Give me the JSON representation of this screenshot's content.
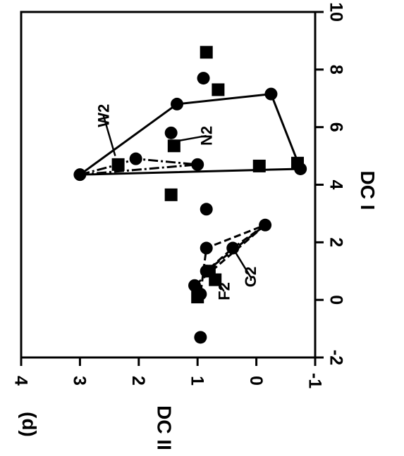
{
  "chart_data": {
    "type": "scatter",
    "panel_label": "(d)",
    "xlabel": "DC I",
    "ylabel": "DC II",
    "xlim": [
      -2,
      10
    ],
    "ylim": [
      -1,
      4
    ],
    "x_ticks": [
      "-2",
      "0",
      "2",
      "4",
      "6",
      "8",
      "10"
    ],
    "y_ticks": [
      "-1",
      "0",
      "1",
      "2",
      "3",
      "4"
    ],
    "grid": false,
    "series": [
      {
        "marker": "circle",
        "points": [
          {
            "x": 7.7,
            "y": 0.9
          },
          {
            "x": 6.8,
            "y": 1.35
          },
          {
            "x": 7.15,
            "y": -0.25
          },
          {
            "x": 5.8,
            "y": 1.45
          },
          {
            "x": 4.9,
            "y": 2.05
          },
          {
            "x": 4.7,
            "y": 1.0
          },
          {
            "x": 4.35,
            "y": 3.0
          },
          {
            "x": 4.55,
            "y": -0.75
          },
          {
            "x": 3.15,
            "y": 0.85
          },
          {
            "x": 2.6,
            "y": -0.15
          },
          {
            "x": 1.8,
            "y": 0.4
          },
          {
            "x": 1.8,
            "y": 0.85
          },
          {
            "x": 1.0,
            "y": 0.85
          },
          {
            "x": 0.5,
            "y": 1.05
          },
          {
            "x": 0.2,
            "y": 0.95
          },
          {
            "x": -1.3,
            "y": 0.95
          }
        ]
      },
      {
        "marker": "square",
        "points": [
          {
            "x": 8.6,
            "y": 0.85
          },
          {
            "x": 7.3,
            "y": 0.65
          },
          {
            "x": 5.35,
            "y": 1.4
          },
          {
            "x": 4.7,
            "y": 2.35
          },
          {
            "x": 4.65,
            "y": -0.05
          },
          {
            "x": 4.75,
            "y": -0.7
          },
          {
            "x": 3.65,
            "y": 1.45
          },
          {
            "x": 1.0,
            "y": 0.8
          },
          {
            "x": 0.7,
            "y": 0.7
          },
          {
            "x": 0.1,
            "y": 1.0
          }
        ]
      }
    ],
    "outlines": [
      [
        [
          4.35,
          3.0
        ],
        [
          6.8,
          1.35
        ],
        [
          7.15,
          -0.25
        ],
        [
          4.55,
          -0.75
        ],
        [
          4.35,
          3.0
        ]
      ],
      [
        [
          4.35,
          3.0
        ],
        [
          4.7,
          2.35
        ],
        [
          4.9,
          2.05
        ],
        [
          4.7,
          1.0
        ],
        [
          4.35,
          3.0
        ]
      ],
      [
        [
          2.6,
          -0.15
        ],
        [
          1.8,
          0.4
        ],
        [
          1.0,
          0.85
        ],
        [
          2.6,
          -0.15
        ]
      ],
      [
        [
          2.6,
          -0.15
        ],
        [
          0.5,
          1.05
        ],
        [
          0.2,
          0.95
        ],
        [
          1.8,
          0.85
        ],
        [
          2.6,
          -0.15
        ]
      ]
    ],
    "annotations": [
      {
        "text": "W2",
        "x": 6.4,
        "y": 2.6,
        "points_to": {
          "x": 5.0,
          "y": 2.4
        }
      },
      {
        "text": "N2",
        "x": 5.7,
        "y": 0.85,
        "points_to": {
          "x": 5.5,
          "y": 1.4
        }
      },
      {
        "text": "G2",
        "x": 0.8,
        "y": 0.1,
        "points_to": {
          "x": 1.8,
          "y": 0.4
        }
      },
      {
        "text": "F2",
        "x": 0.3,
        "y": 0.55,
        "points_to": {
          "x": 1.2,
          "y": 0.85
        }
      }
    ]
  }
}
